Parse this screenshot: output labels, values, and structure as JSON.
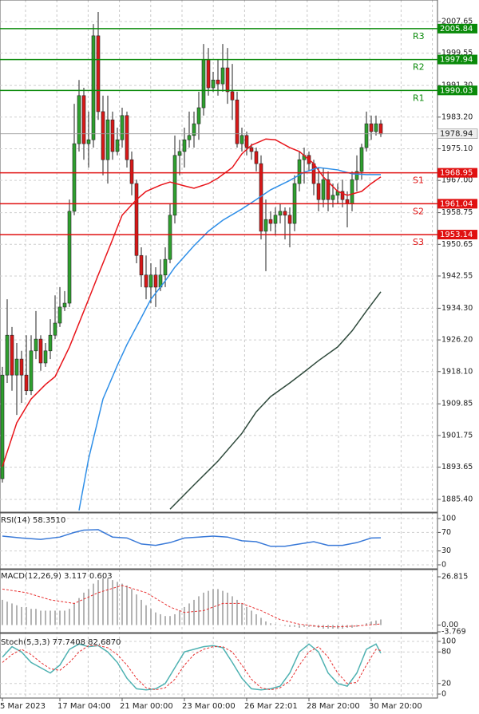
{
  "chart_data": [
    {
      "type": "candlestick",
      "up_color": "#2ea02e",
      "down_color": "#d81818",
      "open": [
        1890.7,
        1917.2,
        1927.4,
        1917.2,
        1921.3,
        1917.2,
        1913.2,
        1923.4,
        1926.4,
        1920.3,
        1923.4,
        1927.4,
        1930.5,
        1934.6,
        1935.6,
        1959.1,
        1976.4,
        1988.7,
        1976.4,
        1977.4,
        2004.0,
        1984.6,
        1972.3,
        1982.5,
        1974.4,
        1977.4,
        1983.6,
        1972.3,
        1966.2,
        1947.8,
        1942.8,
        1939.7,
        1942.8,
        1939.7,
        1942.8,
        1946.8,
        1958.1,
        1973.4,
        1974.4,
        1977.4,
        1978.5,
        1981.5,
        1985.6,
        1997.9,
        1990.7,
        1992.7,
        1991.7,
        1995.8,
        1989.7,
        1987.6,
        1976.4,
        1978.5,
        1975.4,
        1974.4,
        1971.3,
        1954.0,
        1957.0,
        1956.0,
        1958.1,
        1959.1,
        1958.1,
        1956.0,
        1966.2,
        1972.3,
        1973.4,
        1971.3,
        1966.2,
        1962.1,
        1967.2,
        1962.1,
        1963.2,
        1964.2,
        1962.1,
        1961.1,
        1967.2,
        1969.3,
        1975.4,
        1981.5,
        1979.5,
        1981.5
      ],
      "high": [
        1919.3,
        1936.6,
        1929.5,
        1925.4,
        1923.4,
        1927.4,
        1927.4,
        1933.6,
        1927.4,
        1925.4,
        1931.5,
        1937.6,
        1939.7,
        1938.7,
        1962.1,
        1986.6,
        1992.7,
        1990.7,
        1984.6,
        2007.0,
        2010.1,
        1988.7,
        1988.7,
        1984.6,
        1980.5,
        1985.6,
        1984.6,
        1974.4,
        1967.2,
        1949.9,
        1947.8,
        1945.8,
        1944.8,
        1946.8,
        1949.9,
        1961.1,
        1978.5,
        1977.4,
        1980.5,
        1984.6,
        1984.6,
        1989.7,
        2001.9,
        2000.9,
        1994.8,
        1997.9,
        2001.9,
        2000.9,
        1996.8,
        1989.7,
        1980.5,
        1979.5,
        1976.4,
        1975.4,
        1973.4,
        1962.1,
        1959.1,
        1960.1,
        1961.1,
        1960.1,
        1960.1,
        1968.3,
        1974.4,
        1975.4,
        1974.4,
        1972.3,
        1970.3,
        1970.3,
        1969.3,
        1966.2,
        1966.2,
        1967.2,
        1964.2,
        1969.3,
        1973.4,
        1976.4,
        1984.6,
        1983.6,
        1983.6,
        1982.5
      ],
      "low": [
        1889.7,
        1915.2,
        1913.2,
        1907.0,
        1910.1,
        1912.1,
        1912.1,
        1921.3,
        1918.3,
        1919.3,
        1921.3,
        1926.4,
        1929.5,
        1933.6,
        1934.6,
        1958.1,
        1974.4,
        1972.3,
        1970.3,
        1975.4,
        1982.5,
        1968.3,
        1966.2,
        1972.3,
        1973.4,
        1975.4,
        1970.3,
        1963.2,
        1945.8,
        1939.7,
        1936.6,
        1935.6,
        1934.6,
        1938.7,
        1939.7,
        1945.8,
        1956.0,
        1968.3,
        1970.3,
        1975.4,
        1975.4,
        1977.4,
        1983.6,
        1988.7,
        1989.7,
        1988.7,
        1989.7,
        1986.6,
        1982.5,
        1975.4,
        1974.4,
        1973.4,
        1972.3,
        1969.3,
        1951.9,
        1943.8,
        1954.0,
        1952.9,
        1956.0,
        1951.9,
        1949.9,
        1954.0,
        1964.2,
        1966.2,
        1969.3,
        1963.2,
        1959.1,
        1960.1,
        1959.1,
        1960.1,
        1961.1,
        1960.1,
        1955.0,
        1959.1,
        1964.2,
        1967.2,
        1974.4,
        1977.4,
        1978.5,
        1978.1
      ],
      "close": [
        1917.2,
        1927.4,
        1917.2,
        1921.3,
        1917.2,
        1913.2,
        1923.4,
        1926.4,
        1920.3,
        1923.4,
        1927.4,
        1930.5,
        1934.6,
        1935.6,
        1959.1,
        1976.4,
        1988.7,
        1976.4,
        1977.4,
        2004.0,
        1984.6,
        1972.3,
        1982.5,
        1974.4,
        1977.4,
        1983.6,
        1972.3,
        1966.2,
        1947.8,
        1942.8,
        1939.7,
        1942.8,
        1939.7,
        1942.8,
        1946.8,
        1958.1,
        1973.4,
        1974.4,
        1977.4,
        1978.5,
        1981.5,
        1985.6,
        1997.9,
        1990.7,
        1992.7,
        1991.7,
        1995.8,
        1989.7,
        1987.6,
        1976.4,
        1978.5,
        1975.4,
        1974.4,
        1971.3,
        1954.0,
        1957.0,
        1956.0,
        1958.1,
        1959.1,
        1958.1,
        1956.0,
        1966.2,
        1972.3,
        1973.4,
        1971.3,
        1966.2,
        1962.1,
        1967.2,
        1962.1,
        1963.2,
        1964.2,
        1962.1,
        1961.1,
        1967.2,
        1969.3,
        1975.4,
        1981.5,
        1979.5,
        1981.5,
        1978.9
      ],
      "series": [
        {
          "color": "#e8141a",
          "x": [
            0,
            3,
            6,
            9,
            11,
            14,
            18,
            20,
            23,
            25,
            28,
            30,
            33,
            35,
            38,
            40,
            43,
            45,
            48,
            50,
            52,
            55,
            57,
            60,
            62,
            65,
            67,
            70,
            72,
            75,
            77,
            79
          ],
          "values": [
            1893.8,
            1905.0,
            1911.1,
            1914.8,
            1916.8,
            1924.4,
            1936.6,
            1942.8,
            1951.9,
            1958.1,
            1962.1,
            1964.2,
            1965.8,
            1966.6,
            1965.6,
            1965.0,
            1966.2,
            1967.6,
            1970.3,
            1973.8,
            1976.0,
            1977.6,
            1977.4,
            1975.4,
            1974.4,
            1971.3,
            1967.9,
            1964.2,
            1963.2,
            1964.2,
            1966.2,
            1967.9
          ]
        },
        {
          "color": "#2f8fe8",
          "x": [
            16,
            18,
            21,
            24,
            26,
            29,
            31,
            34,
            36,
            40,
            43,
            46,
            50,
            53,
            56,
            60,
            63,
            66,
            70,
            73,
            76,
            79
          ],
          "values": [
            1882.6,
            1895.8,
            1911.1,
            1919.7,
            1925.0,
            1931.9,
            1936.6,
            1941.3,
            1944.8,
            1950.3,
            1954.0,
            1956.8,
            1959.7,
            1962.1,
            1964.6,
            1967.0,
            1969.1,
            1970.3,
            1969.7,
            1968.7,
            1968.5,
            1968.5
          ]
        },
        {
          "color": "#2f4a3c",
          "x": [
            35,
            40,
            45,
            50,
            53,
            56,
            60,
            63,
            66,
            70,
            73,
            76,
            79
          ],
          "values": [
            1882.9,
            1889.1,
            1895.2,
            1902.3,
            1907.8,
            1911.7,
            1915.2,
            1918.0,
            1920.9,
            1924.4,
            1928.5,
            1933.6,
            1938.5
          ]
        }
      ],
      "levels": [
        {
          "label": "R3",
          "value": 2005.84,
          "color": "#0a8a0a"
        },
        {
          "label": "R2",
          "value": 1997.94,
          "color": "#0a8a0a"
        },
        {
          "label": "R1",
          "value": 1990.03,
          "color": "#0a8a0a"
        },
        {
          "label": "S1",
          "value": 1968.95,
          "color": "#e01010"
        },
        {
          "label": "S2",
          "value": 1961.04,
          "color": "#e01010"
        },
        {
          "label": "S3",
          "value": 1953.14,
          "color": "#e01010"
        }
      ],
      "last_price": 1978.94,
      "ylim": [
        1882.54,
        2013.16
      ],
      "yticks": [
        2007.65,
        1999.55,
        {
          "value": 1991.3,
          "label": "1991.30"
        },
        {
          "value": 1983.2,
          "label": "1983.20"
        },
        {
          "value": 1975.1,
          "label": "1975.10"
        },
        {
          "value": 1967,
          "label": "1967.00"
        },
        1958.75,
        1950.65,
        1942.55,
        {
          "value": 1934.3,
          "label": "1934.30"
        },
        {
          "value": 1926.2,
          "label": "1926.20"
        },
        {
          "value": 1918.1,
          "label": "1918.10"
        },
        1909.85,
        1901.75,
        1893.65,
        {
          "value": 1885.4,
          "label": "1885.40"
        }
      ],
      "xticks": [
        {
          "value": 0,
          "label": "5 Mar 2023"
        },
        {
          "value": 12,
          "label": "17 Mar 04:00"
        },
        {
          "value": 25,
          "label": "21 Mar 00:00"
        },
        {
          "value": 38,
          "label": "23 Mar 00:00"
        },
        {
          "value": 51,
          "label": "26 Mar 22:01"
        },
        {
          "value": 64,
          "label": "28 Mar 20:00"
        },
        {
          "value": 77,
          "label": "30 Mar 20:00"
        }
      ],
      "grid": true
    },
    {
      "type": "line",
      "title": "RSI(14) 58.3510",
      "series": [
        {
          "color": "#3a7ad8",
          "x": [
            0,
            4,
            8,
            12,
            15,
            17,
            20,
            23,
            26,
            29,
            32,
            35,
            38,
            41,
            44,
            47,
            50,
            53,
            56,
            59,
            62,
            65,
            68,
            71,
            74,
            77,
            79
          ],
          "values": [
            62,
            58,
            55,
            60,
            70,
            75,
            76,
            60,
            58,
            45,
            42,
            48,
            58,
            60,
            62,
            60,
            52,
            50,
            40,
            40,
            45,
            50,
            42,
            42,
            48,
            58,
            58.351
          ]
        }
      ],
      "ylim": [
        0,
        100
      ],
      "yticks": [
        100,
        70,
        30,
        0
      ],
      "grid": true
    },
    {
      "type": "bar",
      "title": "MACD(12,26,9) 3.117 0.603",
      "color": "#b4b4b4",
      "values": [
        14,
        13,
        12,
        11,
        10,
        10,
        9,
        9,
        8,
        8,
        8,
        8,
        8,
        8,
        9,
        12,
        15,
        18,
        20,
        23,
        25,
        26,
        26,
        25,
        24,
        23,
        22,
        20,
        17,
        14,
        11,
        9,
        7,
        6,
        5,
        5,
        6,
        8,
        10,
        12,
        14,
        16,
        18,
        19,
        20,
        20,
        19,
        18,
        16,
        14,
        12,
        10,
        8,
        6,
        4,
        2,
        1,
        0.5,
        0,
        -0.5,
        -1,
        -1,
        -1.5,
        -1,
        -1,
        -1,
        -1.5,
        -2,
        -2,
        -2,
        -2,
        -2,
        -1.5,
        -1.5,
        -1,
        0,
        1,
        2,
        2.5,
        3.117
      ],
      "series": [
        {
          "color": "#e83030",
          "dashed": true,
          "x": [
            0,
            5,
            10,
            15,
            20,
            25,
            30,
            35,
            38,
            42,
            46,
            50,
            54,
            58,
            62,
            66,
            70,
            74,
            79
          ],
          "values": [
            20,
            18,
            14,
            12,
            18,
            22,
            18,
            10,
            7,
            8,
            12,
            12,
            8,
            3,
            0.5,
            -0.8,
            -1,
            -0.5,
            0.603
          ]
        }
      ],
      "ylim": [
        -3.769,
        26.815
      ],
      "yticks": [
        26.815,
        {
          "value": 0,
          "label": "0.00"
        },
        -3.769
      ],
      "grid": false
    },
    {
      "type": "line",
      "title": "Stoch(5,3,3) 77.7408 82.6870",
      "series": [
        {
          "color": "#4fb2b2",
          "x": [
            0,
            2,
            4,
            6,
            8,
            10,
            12,
            14,
            16,
            18,
            20,
            22,
            24,
            26,
            28,
            30,
            32,
            34,
            36,
            38,
            40,
            42,
            44,
            46,
            48,
            50,
            52,
            54,
            56,
            58,
            60,
            62,
            64,
            66,
            68,
            70,
            72,
            74,
            76,
            78,
            79
          ],
          "values": [
            70,
            90,
            80,
            60,
            50,
            40,
            55,
            85,
            95,
            90,
            92,
            80,
            60,
            30,
            10,
            8,
            10,
            20,
            50,
            80,
            85,
            90,
            92,
            88,
            60,
            30,
            10,
            8,
            10,
            15,
            40,
            80,
            95,
            80,
            40,
            20,
            15,
            40,
            85,
            95,
            77.7408
          ]
        },
        {
          "color": "#e83030",
          "dashed": true,
          "x": [
            0,
            2,
            4,
            6,
            8,
            10,
            12,
            14,
            16,
            18,
            20,
            22,
            24,
            26,
            28,
            30,
            32,
            34,
            36,
            38,
            40,
            42,
            44,
            46,
            48,
            50,
            52,
            54,
            56,
            58,
            60,
            62,
            64,
            66,
            68,
            70,
            72,
            74,
            76,
            78,
            79
          ],
          "values": [
            60,
            75,
            85,
            75,
            60,
            48,
            45,
            60,
            80,
            92,
            92,
            88,
            75,
            55,
            30,
            12,
            8,
            12,
            28,
            55,
            75,
            85,
            90,
            90,
            80,
            55,
            28,
            12,
            8,
            12,
            25,
            55,
            80,
            90,
            70,
            40,
            20,
            22,
            55,
            85,
            82.687
          ]
        }
      ],
      "ylim": [
        0,
        100
      ],
      "yticks": [
        100,
        80,
        20,
        0
      ],
      "grid": true
    }
  ]
}
